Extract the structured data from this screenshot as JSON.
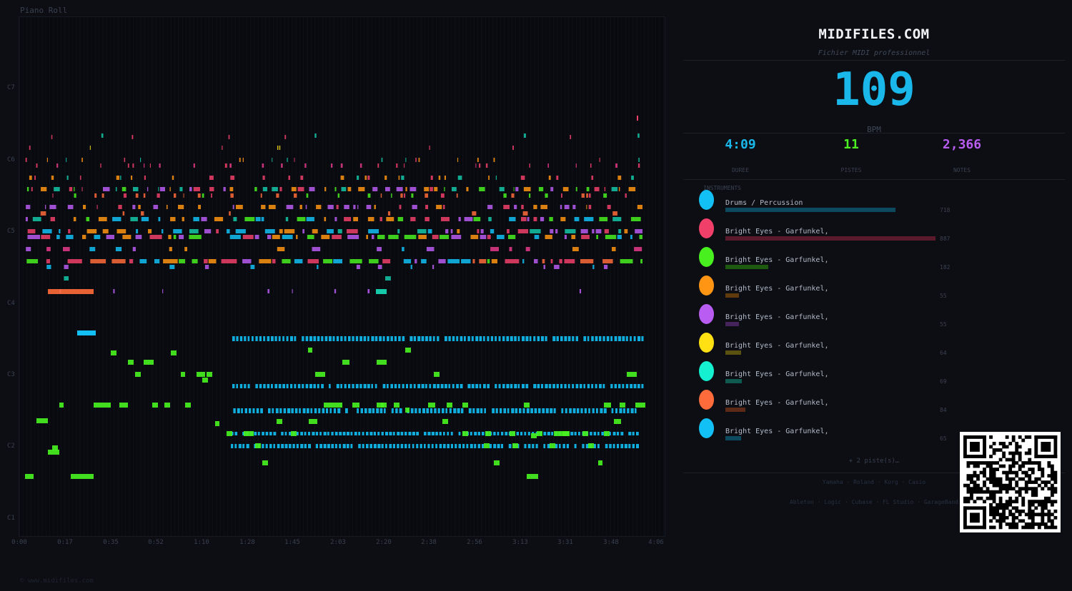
{
  "piano_roll": {
    "title": "Piano Roll",
    "y_labels": [
      "C7",
      "C6",
      "C5",
      "C4",
      "C3",
      "C2",
      "C1"
    ],
    "x_labels": [
      "0:00",
      "0:17",
      "0:35",
      "0:52",
      "1:10",
      "1:28",
      "1:45",
      "2:03",
      "2:20",
      "2:38",
      "2:56",
      "3:13",
      "3:31",
      "3:48",
      "4:06"
    ],
    "copyright": "© www.midifiles.com"
  },
  "panel": {
    "brand": "MIDIFILES.COM",
    "subtitle": "Fichier MIDI professionnel",
    "bpm": "109",
    "bpm_label": "BPM",
    "stats": [
      {
        "value": "4:09",
        "label": "DUREE",
        "color": "#1ab8ea"
      },
      {
        "value": "11",
        "label": "PISTES",
        "color": "#4cf020"
      },
      {
        "value": "2,366",
        "label": "NOTES",
        "color": "#b85cf2"
      }
    ],
    "instruments_title": "INSTRUMENTS",
    "instruments": [
      {
        "name": "Drums / Percussion",
        "count": "718",
        "color": "#12c0f5",
        "bar_color": "#0d4a60"
      },
      {
        "name": "Bright Eyes - Garfunkel,",
        "count": "887",
        "color": "#f0406a",
        "bar_color": "#5a1a2c"
      },
      {
        "name": "Bright Eyes - Garfunkel,",
        "count": "182",
        "color": "#48f020",
        "bar_color": "#1c5a10"
      },
      {
        "name": "Bright Eyes - Garfunkel,",
        "count": "55",
        "color": "#ff9512",
        "bar_color": "#5e3a0c"
      },
      {
        "name": "Bright Eyes - Garfunkel,",
        "count": "55",
        "color": "#b85cf2",
        "bar_color": "#44245a"
      },
      {
        "name": "Bright Eyes - Garfunkel,",
        "count": "64",
        "color": "#ffe012",
        "bar_color": "#5a5010"
      },
      {
        "name": "Bright Eyes - Garfunkel,",
        "count": "69",
        "color": "#14f0d0",
        "bar_color": "#0e5a50"
      },
      {
        "name": "Bright Eyes - Garfunkel,",
        "count": "84",
        "color": "#ff6b3a",
        "bar_color": "#5e2a18"
      },
      {
        "name": "Bright Eyes - Garfunkel,",
        "count": "65",
        "color": "#12c0f5",
        "bar_color": "#0d4a60"
      }
    ],
    "more_tracks": "+ 2 piste(s)…",
    "hardware": "Yamaha · Roland · Korg · Casio",
    "software": "Ableton · Logic · Cubase · FL Studio · GarageBand"
  }
}
